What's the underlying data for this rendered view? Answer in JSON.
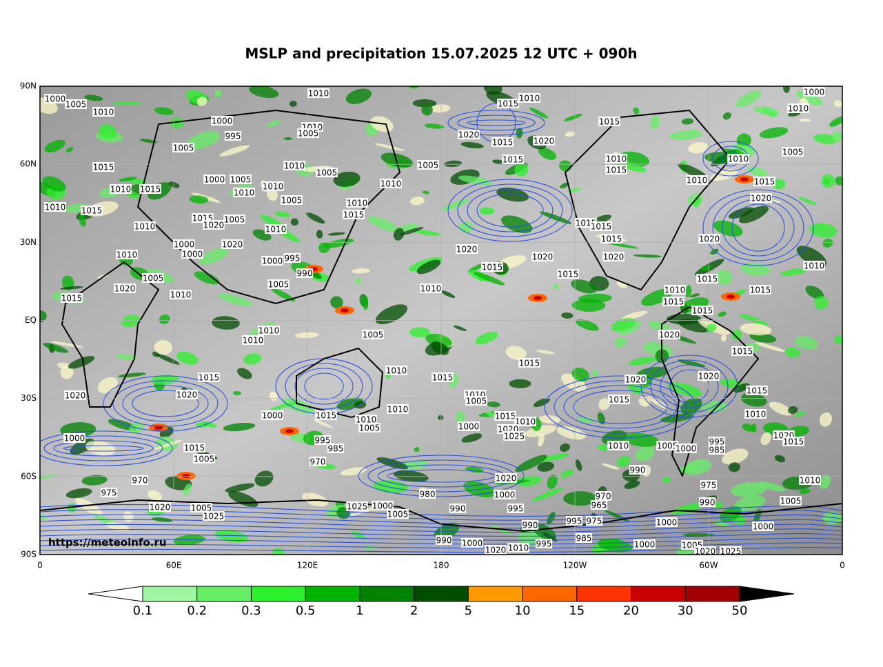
{
  "title": "MSLP and precipitation 15.07.2025 12 UTC + 090h",
  "watermark": "https://meteoinfo.ru",
  "lon_ticks": [
    "0",
    "60E",
    "120E",
    "180",
    "120W",
    "60W",
    "0"
  ],
  "lat_ticks": [
    "90N",
    "60N",
    "30N",
    "EQ",
    "30S",
    "60S",
    "90S"
  ],
  "colorbar": {
    "levels": [
      0.1,
      0.2,
      0.3,
      0.5,
      1,
      2,
      5,
      10,
      15,
      20,
      30,
      50
    ],
    "colors": [
      "#ffffff",
      "#a0f5a0",
      "#66ee66",
      "#2cf02c",
      "#00b400",
      "#008200",
      "#004d00",
      "#ff9900",
      "#ff6600",
      "#ff3300",
      "#c80000",
      "#a00000",
      "#000000"
    ]
  },
  "isobar_labels": [
    1010,
    1000,
    1005,
    1010,
    1015,
    1010,
    1000,
    1010,
    1000,
    995,
    1005,
    1010,
    1005,
    1020,
    1015,
    1020,
    1015,
    1005,
    1010,
    1005,
    1005,
    1015,
    1010,
    1015,
    1010,
    1015,
    1010,
    1015,
    1000,
    1005,
    1010,
    1010,
    1010,
    1010,
    1015,
    1020,
    1010,
    1015,
    1005,
    1010,
    1015,
    1010,
    1015,
    1020,
    1005,
    1010,
    1015,
    1015,
    1015,
    1020,
    1000,
    1020,
    1000,
    1010,
    995,
    1000,
    1020,
    1020,
    1020,
    1010,
    990,
    1015,
    1015,
    1005,
    1005,
    1015,
    1020,
    1010,
    1010,
    1015,
    1010,
    1015,
    1015,
    1015,
    1010,
    1010,
    1005,
    1020,
    1015,
    1015,
    1010,
    1015,
    1020,
    1020,
    1015,
    1020,
    1020,
    1010,
    1005,
    1015,
    1015,
    1010,
    1000,
    1015,
    1010,
    1005,
    1015,
    1010,
    1010,
    1000,
    1020,
    1025,
    1020,
    1015,
    1000,
    995,
    985,
    1010,
    1005,
    1000,
    995,
    985,
    1015,
    1005,
    970,
    990,
    970,
    1020,
    1010,
    975,
    1000,
    980,
    975,
    990,
    1005,
    970,
    965,
    1020,
    1005,
    1025,
    1025,
    1000,
    1005,
    990,
    995,
    990,
    995,
    975,
    1000,
    1000,
    985,
    990,
    1000,
    995,
    1020,
    1010,
    1000,
    1005,
    1020,
    1025
  ]
}
